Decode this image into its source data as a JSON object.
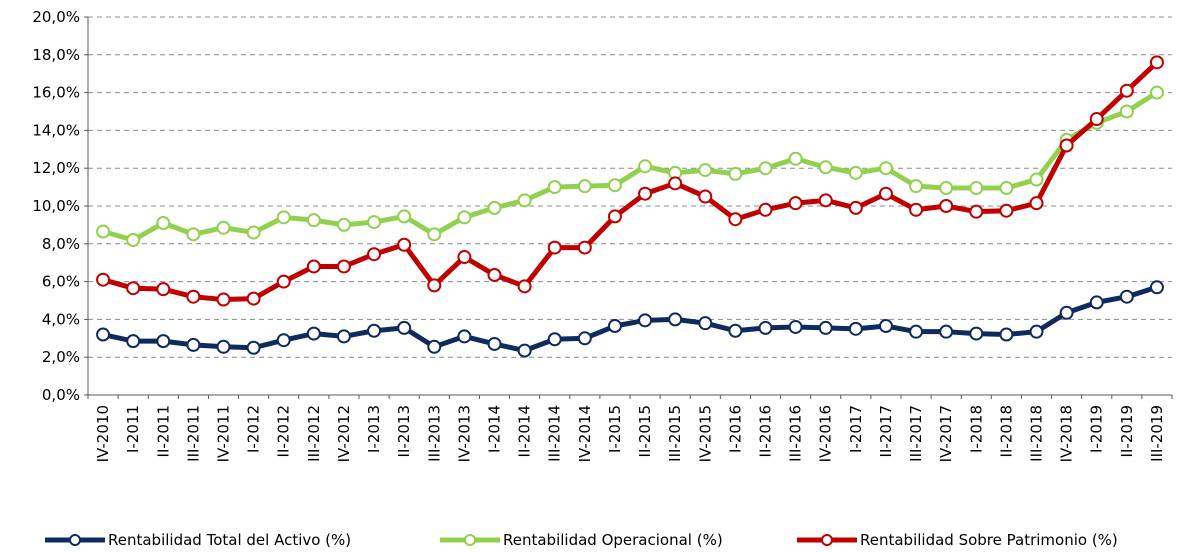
{
  "chart_data": {
    "type": "line",
    "categories": [
      "IV-2010",
      "I-2011",
      "II-2011",
      "III-2011",
      "IV-2011",
      "I-2012",
      "II-2012",
      "III-2012",
      "IV-2012",
      "I-2013",
      "II-2013",
      "III-2013",
      "IV-2013",
      "I-2014",
      "II-2014",
      "III-2014",
      "IV-2014",
      "I-2015",
      "II-2015",
      "III-2015",
      "IV-2015",
      "I-2016",
      "II-2016",
      "III-2016",
      "IV-2016",
      "I-2017",
      "II-2017",
      "III-2017",
      "IV-2017",
      "I-2018",
      "II-2018",
      "III-2018",
      "IV-2018",
      "I-2019",
      "II-2019",
      "III-2019"
    ],
    "series": [
      {
        "name": "Rentabilidad Total del Activo (%)",
        "color": "#0f2a5c",
        "values": [
          3.2,
          2.85,
          2.85,
          2.65,
          2.55,
          2.5,
          2.9,
          3.25,
          3.1,
          3.4,
          3.55,
          2.55,
          3.1,
          2.7,
          2.35,
          2.95,
          3.0,
          3.65,
          3.95,
          4.0,
          3.8,
          3.4,
          3.55,
          3.6,
          3.55,
          3.5,
          3.65,
          3.35,
          3.35,
          3.25,
          3.2,
          3.35,
          4.35,
          4.9,
          5.2,
          5.7
        ]
      },
      {
        "name": "Rentabilidad Operacional (%)",
        "color": "#92d050",
        "values": [
          8.65,
          8.2,
          9.1,
          8.5,
          8.85,
          8.6,
          9.4,
          9.25,
          9.0,
          9.15,
          9.45,
          8.5,
          9.4,
          9.9,
          10.3,
          11.0,
          11.05,
          11.1,
          12.1,
          11.75,
          11.9,
          11.7,
          12.0,
          12.5,
          12.05,
          11.75,
          12.0,
          11.05,
          10.95,
          10.95,
          10.95,
          11.4,
          13.5,
          14.4,
          15.0,
          16.0
        ]
      },
      {
        "name": "Rentabilidad Sobre Patrimonio (%)",
        "color": "#c00000",
        "values": [
          6.1,
          5.65,
          5.6,
          5.2,
          5.05,
          5.1,
          6.0,
          6.8,
          6.8,
          7.45,
          7.95,
          5.8,
          7.3,
          6.35,
          5.75,
          7.8,
          7.8,
          9.45,
          10.65,
          11.2,
          10.5,
          9.3,
          9.8,
          10.15,
          10.3,
          9.9,
          10.65,
          9.8,
          10.0,
          9.7,
          9.75,
          10.15,
          13.2,
          14.6,
          16.1,
          17.6
        ]
      }
    ],
    "ylim": [
      0,
      20
    ],
    "yticks": [
      {
        "value": 0,
        "label": "0,0%"
      },
      {
        "value": 2,
        "label": "2,0%"
      },
      {
        "value": 4,
        "label": "4,0%"
      },
      {
        "value": 6,
        "label": "6,0%"
      },
      {
        "value": 8,
        "label": "8,0%"
      },
      {
        "value": 10,
        "label": "10,0%"
      },
      {
        "value": 12,
        "label": "12,0%"
      },
      {
        "value": 14,
        "label": "14,0%"
      },
      {
        "value": 16,
        "label": "16,0%"
      },
      {
        "value": 18,
        "label": "18,0%"
      },
      {
        "value": 20,
        "label": "20,0%"
      }
    ],
    "grid": true,
    "legend": "bottom"
  }
}
